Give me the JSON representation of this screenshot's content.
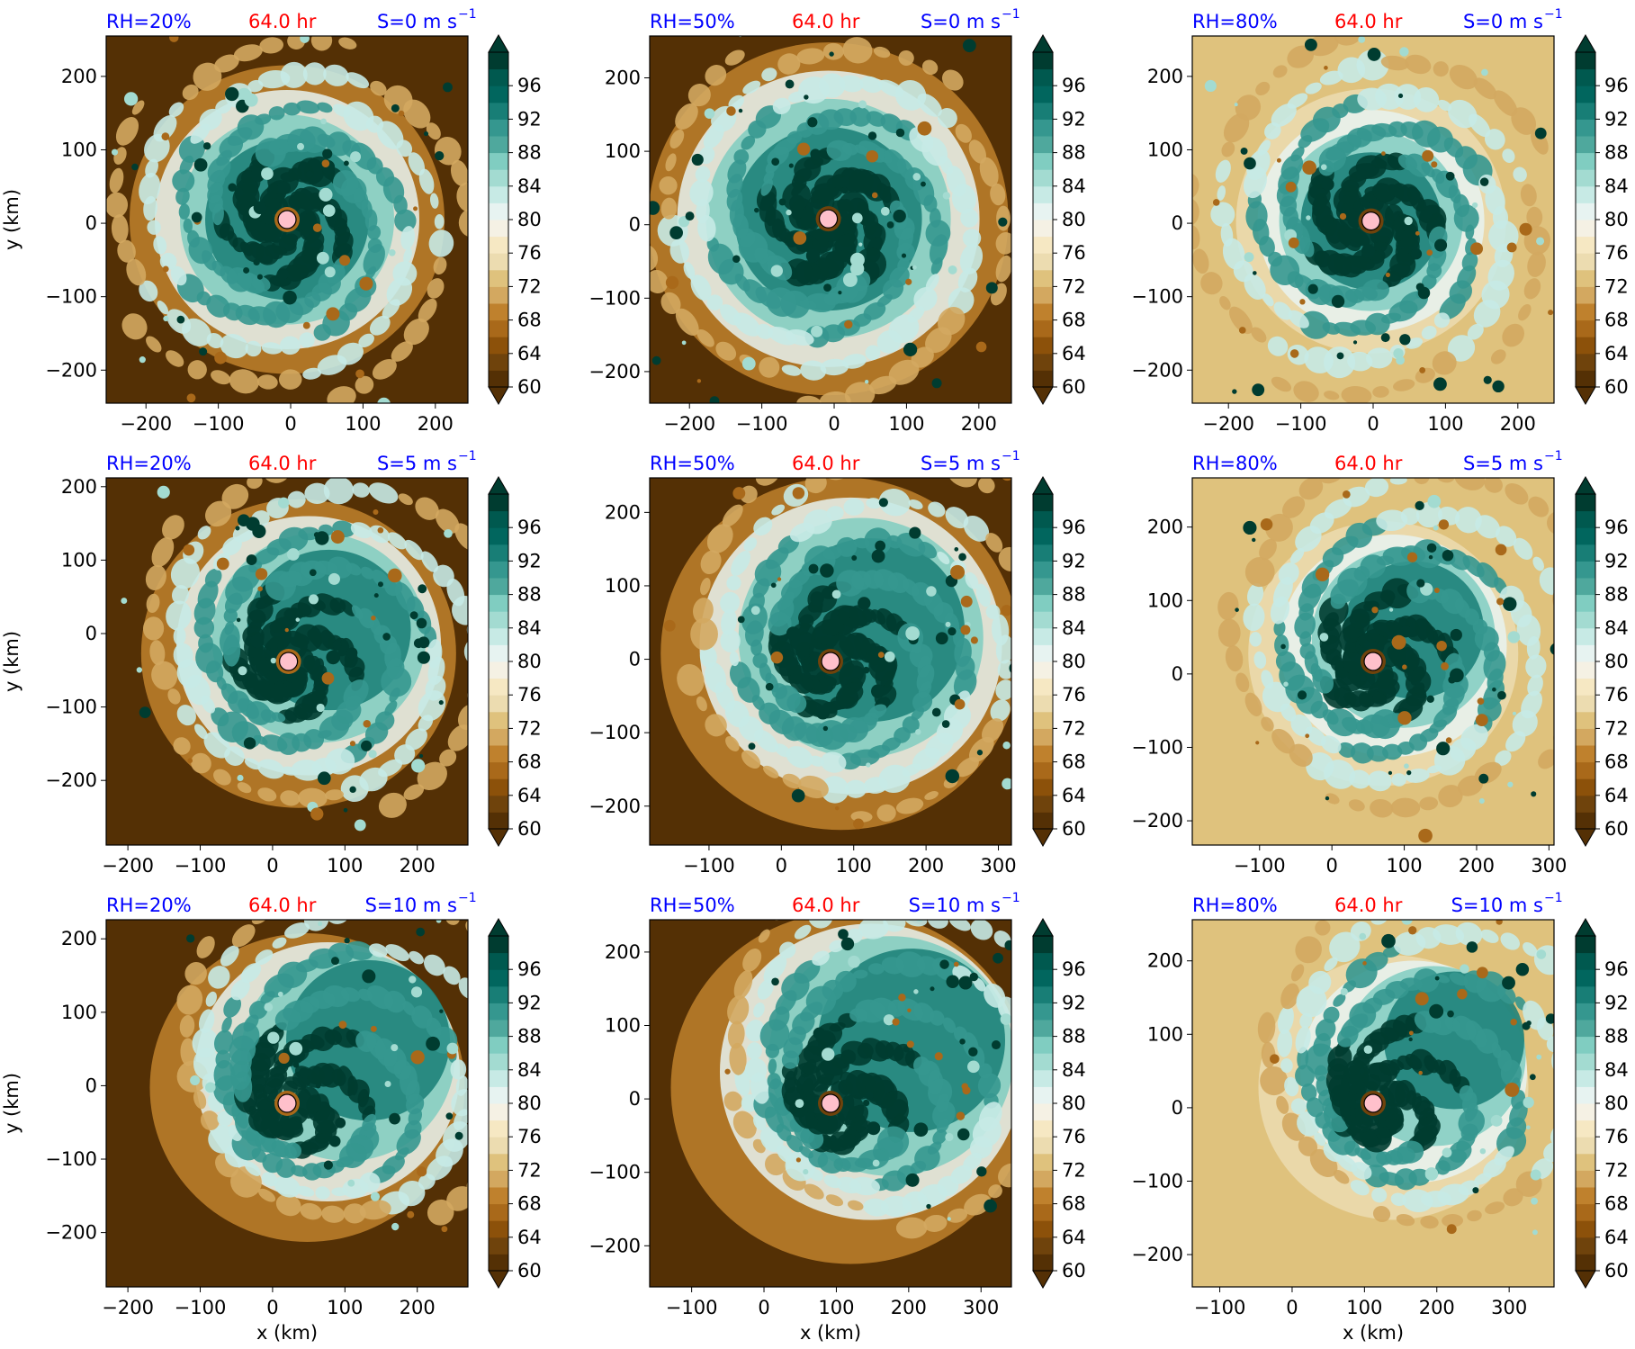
{
  "figure": {
    "colors": {
      "title_left": "#0000ff",
      "title_center": "#ff0000",
      "title_right": "#0000ff",
      "center_marker": "#ffc0cb",
      "colormap": [
        "#543005",
        "#6f430c",
        "#8c510a",
        "#a9691a",
        "#bf812d",
        "#d3a860",
        "#dfc27d",
        "#ecdcb0",
        "#f6e8c3",
        "#f5f1e4",
        "#e7f3f1",
        "#c7eae5",
        "#a3dbd1",
        "#80cdc1",
        "#4fa89d",
        "#35978f",
        "#187e76",
        "#01665e",
        "#00594f",
        "#003c30"
      ]
    },
    "colorbar": {
      "ticks": [
        60,
        64,
        68,
        72,
        76,
        80,
        84,
        88,
        92,
        96
      ],
      "levels": [
        60,
        100
      ],
      "extend": "both"
    }
  },
  "chart_data": [
    {
      "type": "heatmap",
      "title_left": "RH=20%",
      "title_center": "64.0 hr",
      "title_right": "S=0 m s",
      "title_right_sup": "−1",
      "xlabel": "",
      "ylabel": "y (km)",
      "xticks": [
        "−200",
        "−100",
        "0",
        "100",
        "200"
      ],
      "yticks": [
        "200",
        "100",
        "0",
        "−100",
        "−200"
      ],
      "xlim": [
        -255,
        245
      ],
      "ylim": [
        -245,
        255
      ],
      "center": [
        -5,
        5
      ],
      "shear": 0,
      "rh": 20
    },
    {
      "type": "heatmap",
      "title_left": "RH=50%",
      "title_center": "64.0 hr",
      "title_right": "S=0 m s",
      "title_right_sup": "−1",
      "xlabel": "",
      "ylabel": "",
      "xticks": [
        "−200",
        "−100",
        "0",
        "100",
        "200"
      ],
      "yticks": [
        "200",
        "100",
        "0",
        "−100",
        "−200"
      ],
      "xlim": [
        -255,
        245
      ],
      "ylim": [
        -243,
        257
      ],
      "center": [
        -8,
        8
      ],
      "shear": 0,
      "rh": 50
    },
    {
      "type": "heatmap",
      "title_left": "RH=80%",
      "title_center": "64.0 hr",
      "title_right": "S=0 m s",
      "title_right_sup": "−1",
      "xlabel": "",
      "ylabel": "",
      "xticks": [
        "−200",
        "−100",
        "0",
        "100",
        "200"
      ],
      "yticks": [
        "200",
        "100",
        "0",
        "−100",
        "−200"
      ],
      "xlim": [
        -250,
        250
      ],
      "ylim": [
        -245,
        255
      ],
      "center": [
        -3,
        3
      ],
      "shear": 0,
      "rh": 80
    },
    {
      "type": "heatmap",
      "title_left": "RH=20%",
      "title_center": "64.0 hr",
      "title_right": "S=5 m s",
      "title_right_sup": "−1",
      "xlabel": "",
      "ylabel": "y (km)",
      "xticks": [
        "−200",
        "−100",
        "0",
        "100",
        "200"
      ],
      "yticks": [
        "200",
        "100",
        "0",
        "−100",
        "−200"
      ],
      "xlim": [
        -230,
        270
      ],
      "ylim": [
        -288,
        212
      ],
      "center": [
        22,
        -38
      ],
      "shear": 5,
      "rh": 20
    },
    {
      "type": "heatmap",
      "title_left": "RH=50%",
      "title_center": "64.0 hr",
      "title_right": "S=5 m s",
      "title_right_sup": "−1",
      "xlabel": "",
      "ylabel": "",
      "xticks": [
        "−100",
        "0",
        "100",
        "200",
        "300"
      ],
      "yticks": [
        "200",
        "100",
        "0",
        "−100",
        "−200"
      ],
      "xlim": [
        -182,
        318
      ],
      "ylim": [
        -253,
        247
      ],
      "center": [
        68,
        -3
      ],
      "shear": 5,
      "rh": 50
    },
    {
      "type": "heatmap",
      "title_left": "RH=80%",
      "title_center": "64.0 hr",
      "title_right": "S=5 m s",
      "title_right_sup": "−1",
      "xlabel": "",
      "ylabel": "",
      "xticks": [
        "−100",
        "0",
        "100",
        "200",
        "300"
      ],
      "yticks": [
        "200",
        "100",
        "0",
        "−100",
        "−200"
      ],
      "xlim": [
        -193,
        307
      ],
      "ylim": [
        -233,
        267
      ],
      "center": [
        57,
        17
      ],
      "shear": 5,
      "rh": 80
    },
    {
      "type": "heatmap",
      "title_left": "RH=20%",
      "title_center": "64.0 hr",
      "title_right": "S=10 m s",
      "title_right_sup": "−1",
      "xlabel": "x (km)",
      "ylabel": "y (km)",
      "xticks": [
        "−200",
        "−100",
        "0",
        "100",
        "200"
      ],
      "yticks": [
        "200",
        "100",
        "0",
        "−100",
        "−200"
      ],
      "xlim": [
        -230,
        270
      ],
      "ylim": [
        -274,
        226
      ],
      "center": [
        20,
        -24
      ],
      "shear": 10,
      "rh": 20
    },
    {
      "type": "heatmap",
      "title_left": "RH=50%",
      "title_center": "64.0 hr",
      "title_right": "S=10 m s",
      "title_right_sup": "−1",
      "xlabel": "x (km)",
      "ylabel": "",
      "xticks": [
        "−100",
        "0",
        "100",
        "200",
        "300"
      ],
      "yticks": [
        "200",
        "100",
        "0",
        "−100",
        "−200"
      ],
      "xlim": [
        -158,
        342
      ],
      "ylim": [
        -256,
        244
      ],
      "center": [
        92,
        -6
      ],
      "shear": 10,
      "rh": 50
    },
    {
      "type": "heatmap",
      "title_left": "RH=80%",
      "title_center": "64.0 hr",
      "title_right": "S=10 m s",
      "title_right_sup": "−1",
      "xlabel": "x (km)",
      "ylabel": "",
      "xticks": [
        "−100",
        "0",
        "100",
        "200",
        "300"
      ],
      "yticks": [
        "200",
        "100",
        "0",
        "−100",
        "−200"
      ],
      "xlim": [
        -138,
        362
      ],
      "ylim": [
        -244,
        256
      ],
      "center": [
        112,
        6
      ],
      "shear": 10,
      "rh": 80
    }
  ]
}
